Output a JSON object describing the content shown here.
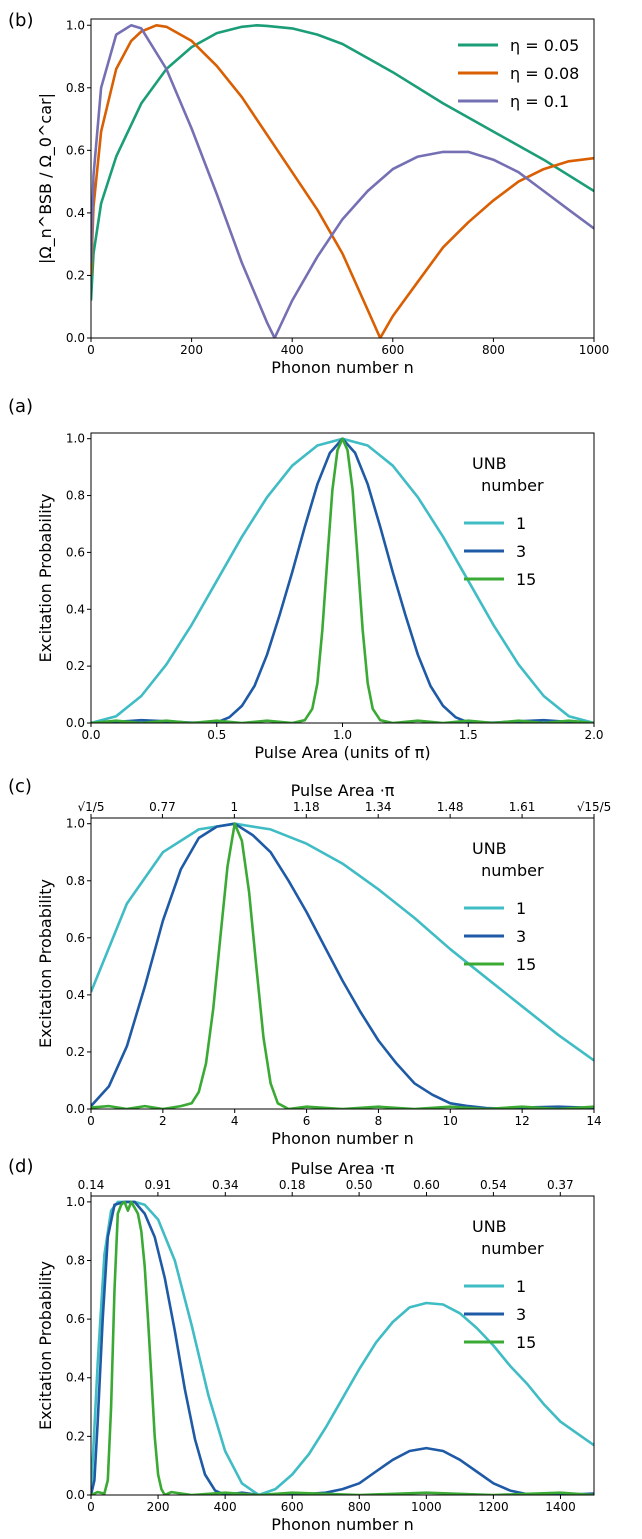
{
  "chart_data": [
    {
      "id": "b",
      "type": "line",
      "panel_label": "(b)",
      "title": "",
      "xlabel": "Phonon number n",
      "ylabel": "|Ω_n^BSB / Ω_0^car|",
      "xlim": [
        0,
        1000
      ],
      "ylim": [
        0,
        1.02
      ],
      "xticks": [
        0,
        200,
        400,
        600,
        800,
        1000
      ],
      "xtick_labels": [
        "0",
        "200",
        "400",
        "600",
        "800",
        "1000"
      ],
      "yticks": [
        0,
        0.2,
        0.4,
        0.6,
        0.8,
        1.0
      ],
      "ytick_labels": [
        "0.0",
        "0.2",
        "0.4",
        "0.6",
        "0.8",
        "1.0"
      ],
      "legend_placement": "top-right",
      "legend_title": "",
      "series": [
        {
          "name": "η = 0.05",
          "color": "#1b9e77",
          "x": [
            0,
            5,
            20,
            50,
            100,
            150,
            200,
            250,
            300,
            330,
            350,
            400,
            450,
            500,
            600,
            700,
            800,
            900,
            1000
          ],
          "y": [
            0.12,
            0.27,
            0.43,
            0.58,
            0.75,
            0.86,
            0.93,
            0.975,
            0.995,
            1.0,
            0.998,
            0.99,
            0.97,
            0.94,
            0.85,
            0.75,
            0.66,
            0.57,
            0.47
          ]
        },
        {
          "name": "η = 0.08",
          "color": "#d95f02",
          "x": [
            0,
            5,
            20,
            50,
            80,
            100,
            130,
            150,
            200,
            250,
            300,
            350,
            400,
            450,
            500,
            550,
            575,
            600,
            650,
            700,
            750,
            800,
            850,
            900,
            950,
            1000
          ],
          "y": [
            0.2,
            0.42,
            0.66,
            0.86,
            0.95,
            0.98,
            1.0,
            0.995,
            0.95,
            0.87,
            0.77,
            0.65,
            0.53,
            0.41,
            0.27,
            0.09,
            0.0,
            0.07,
            0.18,
            0.29,
            0.37,
            0.44,
            0.5,
            0.54,
            0.565,
            0.575
          ]
        },
        {
          "name": "η = 0.1",
          "color": "#7570b3",
          "x": [
            0,
            5,
            20,
            50,
            80,
            100,
            150,
            200,
            250,
            300,
            350,
            365,
            400,
            450,
            500,
            550,
            600,
            650,
            700,
            750,
            800,
            850,
            900,
            950,
            1000
          ],
          "y": [
            0.24,
            0.52,
            0.8,
            0.97,
            1.0,
            0.99,
            0.86,
            0.67,
            0.46,
            0.24,
            0.05,
            0.0,
            0.12,
            0.26,
            0.38,
            0.47,
            0.54,
            0.58,
            0.595,
            0.595,
            0.57,
            0.53,
            0.47,
            0.41,
            0.35
          ]
        }
      ]
    },
    {
      "id": "a",
      "type": "line",
      "panel_label": "(a)",
      "title": "",
      "xlabel": "Pulse Area (units of π)",
      "ylabel": "Excitation Probability",
      "xlim": [
        0,
        2.0
      ],
      "ylim": [
        0,
        1.02
      ],
      "xticks": [
        0,
        0.5,
        1.0,
        1.5,
        2.0
      ],
      "xtick_labels": [
        "0.0",
        "0.5",
        "1.0",
        "1.5",
        "2.0"
      ],
      "yticks": [
        0,
        0.2,
        0.4,
        0.6,
        0.8,
        1.0
      ],
      "ytick_labels": [
        "0.0",
        "0.2",
        "0.4",
        "0.6",
        "0.8",
        "1.0"
      ],
      "legend_placement": "top-right",
      "legend_title": "UNB\n number",
      "series": [
        {
          "name": "1",
          "color": "#3fbcc4",
          "x": [
            0,
            0.1,
            0.2,
            0.3,
            0.4,
            0.5,
            0.6,
            0.7,
            0.8,
            0.9,
            1.0,
            1.1,
            1.2,
            1.3,
            1.4,
            1.5,
            1.6,
            1.7,
            1.8,
            1.9,
            2.0
          ],
          "y": [
            0.0,
            0.024,
            0.095,
            0.206,
            0.345,
            0.5,
            0.655,
            0.794,
            0.905,
            0.976,
            1.0,
            0.976,
            0.905,
            0.794,
            0.655,
            0.5,
            0.345,
            0.206,
            0.095,
            0.024,
            0.0
          ]
        },
        {
          "name": "3",
          "color": "#1f5aa6",
          "x": [
            0,
            0.1,
            0.2,
            0.3,
            0.4,
            0.5,
            0.55,
            0.6,
            0.65,
            0.7,
            0.75,
            0.8,
            0.85,
            0.9,
            0.95,
            1.0,
            1.05,
            1.1,
            1.15,
            1.2,
            1.25,
            1.3,
            1.35,
            1.4,
            1.45,
            1.5,
            1.6,
            1.7,
            1.8,
            1.9,
            2.0
          ],
          "y": [
            0.0,
            0.004,
            0.01,
            0.006,
            0.001,
            0.002,
            0.02,
            0.06,
            0.13,
            0.24,
            0.38,
            0.53,
            0.69,
            0.84,
            0.95,
            1.0,
            0.95,
            0.84,
            0.69,
            0.53,
            0.38,
            0.24,
            0.13,
            0.06,
            0.02,
            0.002,
            0.001,
            0.006,
            0.01,
            0.004,
            0.0
          ]
        },
        {
          "name": "15",
          "color": "#3aaa35",
          "x": [
            0,
            0.1,
            0.2,
            0.3,
            0.4,
            0.5,
            0.6,
            0.7,
            0.8,
            0.85,
            0.88,
            0.9,
            0.92,
            0.94,
            0.96,
            0.98,
            1.0,
            1.02,
            1.04,
            1.06,
            1.08,
            1.1,
            1.12,
            1.15,
            1.2,
            1.3,
            1.4,
            1.5,
            1.6,
            1.7,
            1.8,
            1.9,
            2.0
          ],
          "y": [
            0.0,
            0.008,
            0.0,
            0.008,
            0.0,
            0.008,
            0.0,
            0.008,
            0.0,
            0.01,
            0.05,
            0.14,
            0.33,
            0.58,
            0.82,
            0.96,
            1.0,
            0.96,
            0.82,
            0.58,
            0.33,
            0.14,
            0.05,
            0.01,
            0.0,
            0.008,
            0.0,
            0.008,
            0.0,
            0.008,
            0.0,
            0.008,
            0.0
          ]
        }
      ]
    },
    {
      "id": "c",
      "type": "line",
      "panel_label": "(c)",
      "title": "",
      "xlabel": "Phonon number n",
      "ylabel": "Excitation Probability",
      "top_xlabel": "Pulse Area ·π",
      "top_xtick_labels": [
        "√1/5",
        "0.77",
        "1",
        "1.18",
        "1.34",
        "1.48",
        "1.61",
        "√15/5"
      ],
      "xlim": [
        0,
        14
      ],
      "ylim": [
        0,
        1.02
      ],
      "xticks": [
        0,
        2,
        4,
        6,
        8,
        10,
        12,
        14
      ],
      "xtick_labels": [
        "0",
        "2",
        "4",
        "6",
        "8",
        "10",
        "12",
        "14"
      ],
      "yticks": [
        0,
        0.2,
        0.4,
        0.6,
        0.8,
        1.0
      ],
      "ytick_labels": [
        "0.0",
        "0.2",
        "0.4",
        "0.6",
        "0.8",
        "1.0"
      ],
      "legend_placement": "top-right",
      "legend_title": "UNB\n number",
      "series": [
        {
          "name": "1",
          "color": "#3fbcc4",
          "x": [
            0,
            1,
            2,
            3,
            4,
            5,
            6,
            7,
            8,
            9,
            10,
            11,
            12,
            13,
            14
          ],
          "y": [
            0.41,
            0.72,
            0.9,
            0.98,
            1.0,
            0.98,
            0.93,
            0.86,
            0.77,
            0.67,
            0.56,
            0.46,
            0.36,
            0.26,
            0.17
          ]
        },
        {
          "name": "3",
          "color": "#1f5aa6",
          "x": [
            0,
            0.5,
            1,
            1.5,
            2,
            2.5,
            3,
            3.5,
            4,
            4.5,
            5,
            5.5,
            6,
            6.5,
            7,
            7.5,
            8,
            8.5,
            9,
            9.5,
            10,
            10.5,
            11,
            11.5,
            12,
            13,
            14
          ],
          "y": [
            0.01,
            0.08,
            0.22,
            0.43,
            0.66,
            0.84,
            0.95,
            0.99,
            1.0,
            0.96,
            0.9,
            0.8,
            0.69,
            0.57,
            0.45,
            0.34,
            0.24,
            0.16,
            0.09,
            0.05,
            0.02,
            0.01,
            0.003,
            0.001,
            0.005,
            0.008,
            0.004
          ]
        },
        {
          "name": "15",
          "color": "#3aaa35",
          "x": [
            0,
            0.5,
            1,
            1.5,
            2,
            2.5,
            2.8,
            3.0,
            3.2,
            3.4,
            3.6,
            3.8,
            4.0,
            4.2,
            4.4,
            4.6,
            4.8,
            5.0,
            5.2,
            5.5,
            6,
            7,
            8,
            9,
            10,
            11,
            12,
            13,
            14
          ],
          "y": [
            0.005,
            0.01,
            0.0,
            0.01,
            0.0,
            0.01,
            0.02,
            0.06,
            0.16,
            0.35,
            0.6,
            0.85,
            1.0,
            0.94,
            0.76,
            0.5,
            0.25,
            0.09,
            0.02,
            0.0,
            0.008,
            0.0,
            0.008,
            0.0,
            0.008,
            0.0,
            0.008,
            0.0,
            0.008
          ]
        }
      ]
    },
    {
      "id": "d",
      "type": "line",
      "panel_label": "(d)",
      "title": "",
      "xlabel": "Phonon number n",
      "ylabel": "Excitation Probability",
      "top_xlabel": "Pulse Area ·π",
      "top_xtick_labels": [
        "0.14",
        "0.91",
        "0.34",
        "0.18",
        "0.50",
        "0.60",
        "0.54",
        "0.37"
      ],
      "xlim": [
        0,
        1500
      ],
      "ylim": [
        0,
        1.02
      ],
      "xticks": [
        0,
        200,
        400,
        600,
        800,
        1000,
        1200,
        1400
      ],
      "xtick_labels": [
        "0",
        "200",
        "400",
        "600",
        "800",
        "1000",
        "1200",
        "1400"
      ],
      "yticks": [
        0,
        0.2,
        0.4,
        0.6,
        0.8,
        1.0
      ],
      "ytick_labels": [
        "0.0",
        "0.2",
        "0.4",
        "0.6",
        "0.8",
        "1.0"
      ],
      "legend_placement": "top-right",
      "legend_title": "UNB\n number",
      "series": [
        {
          "name": "1",
          "color": "#3fbcc4",
          "x": [
            0,
            20,
            40,
            60,
            80,
            100,
            130,
            160,
            200,
            250,
            300,
            350,
            400,
            450,
            500,
            550,
            600,
            650,
            700,
            750,
            800,
            850,
            900,
            950,
            1000,
            1050,
            1100,
            1150,
            1200,
            1250,
            1300,
            1350,
            1400,
            1450,
            1500
          ],
          "y": [
            0.0,
            0.45,
            0.82,
            0.97,
            1.0,
            1.0,
            1.0,
            0.99,
            0.94,
            0.8,
            0.58,
            0.34,
            0.15,
            0.04,
            0.0,
            0.02,
            0.07,
            0.14,
            0.23,
            0.33,
            0.43,
            0.52,
            0.59,
            0.64,
            0.655,
            0.65,
            0.62,
            0.57,
            0.51,
            0.44,
            0.38,
            0.31,
            0.25,
            0.21,
            0.17
          ]
        },
        {
          "name": "3",
          "color": "#1f5aa6",
          "x": [
            0,
            10,
            20,
            35,
            50,
            70,
            100,
            130,
            160,
            190,
            220,
            250,
            280,
            310,
            340,
            370,
            400,
            450,
            500,
            600,
            700,
            750,
            800,
            850,
            900,
            950,
            1000,
            1050,
            1100,
            1150,
            1200,
            1250,
            1300,
            1400,
            1500
          ],
          "y": [
            0.0,
            0.05,
            0.25,
            0.6,
            0.88,
            0.99,
            1.0,
            1.0,
            0.96,
            0.88,
            0.74,
            0.56,
            0.36,
            0.19,
            0.07,
            0.015,
            0.0,
            0.008,
            0.0,
            0.0,
            0.008,
            0.02,
            0.04,
            0.08,
            0.12,
            0.15,
            0.16,
            0.15,
            0.12,
            0.08,
            0.04,
            0.015,
            0.003,
            0.0,
            0.005
          ]
        },
        {
          "name": "15",
          "color": "#3aaa35",
          "x": [
            0,
            20,
            40,
            50,
            60,
            70,
            80,
            90,
            100,
            110,
            120,
            130,
            140,
            150,
            160,
            170,
            180,
            190,
            200,
            210,
            220,
            240,
            300,
            400,
            500,
            600,
            800,
            1000,
            1200,
            1400,
            1500
          ],
          "y": [
            0.0,
            0.01,
            0.005,
            0.05,
            0.3,
            0.7,
            0.96,
            0.99,
            1.0,
            0.97,
            1.0,
            0.98,
            0.96,
            0.9,
            0.78,
            0.6,
            0.4,
            0.2,
            0.07,
            0.02,
            0.0,
            0.01,
            0.0,
            0.008,
            0.0,
            0.008,
            0.0,
            0.008,
            0.0,
            0.008,
            0.0
          ]
        }
      ]
    }
  ]
}
